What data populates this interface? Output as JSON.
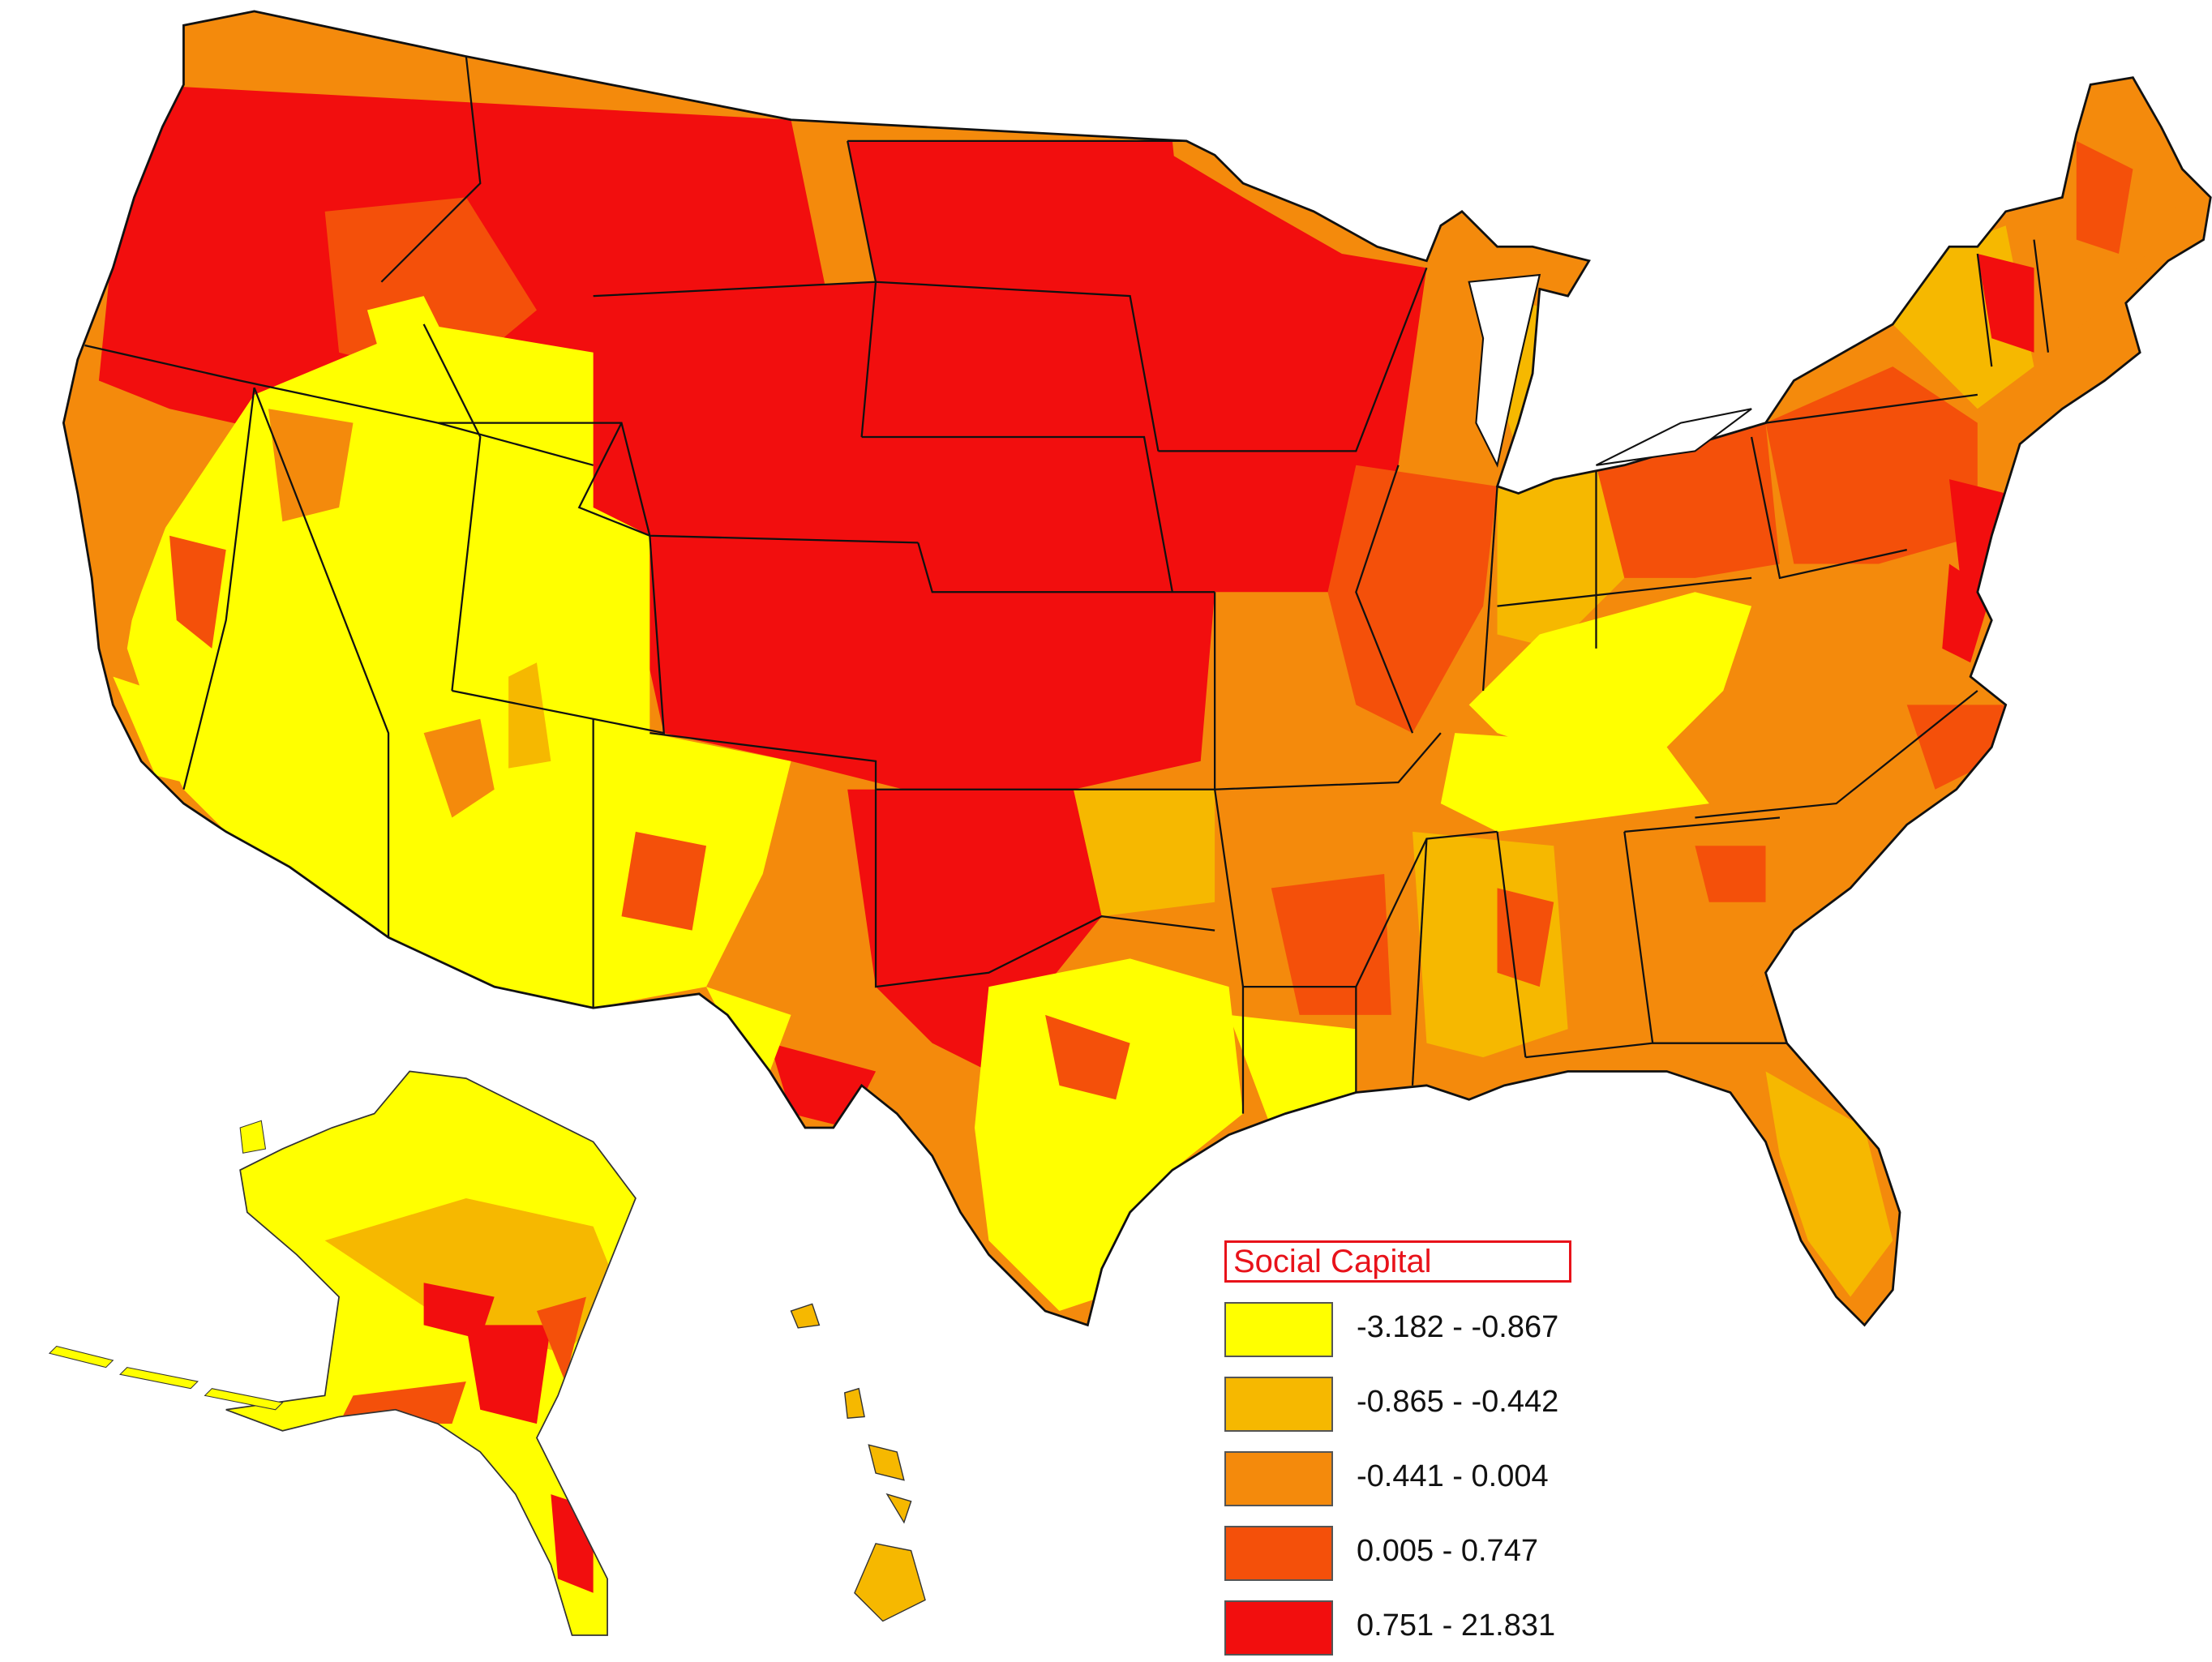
{
  "map": {
    "title": "",
    "colors": {
      "class1": "#ffff00",
      "class2": "#f6b800",
      "class3": "#f48a0c",
      "class4": "#f4500a",
      "class5": "#f20e0e",
      "border": "#111111",
      "county_line": "#777777"
    }
  },
  "legend": {
    "title": "Social Capital",
    "items": [
      {
        "label": "-3.182 - -0.867",
        "color": "#ffff00"
      },
      {
        "label": "-0.865 - -0.442",
        "color": "#f6b800"
      },
      {
        "label": "-0.441 - 0.004",
        "color": "#f48a0c"
      },
      {
        "label": "0.005 - 0.747",
        "color": "#f4500a"
      },
      {
        "label": "0.751 - 21.831",
        "color": "#f20e0e"
      }
    ]
  }
}
